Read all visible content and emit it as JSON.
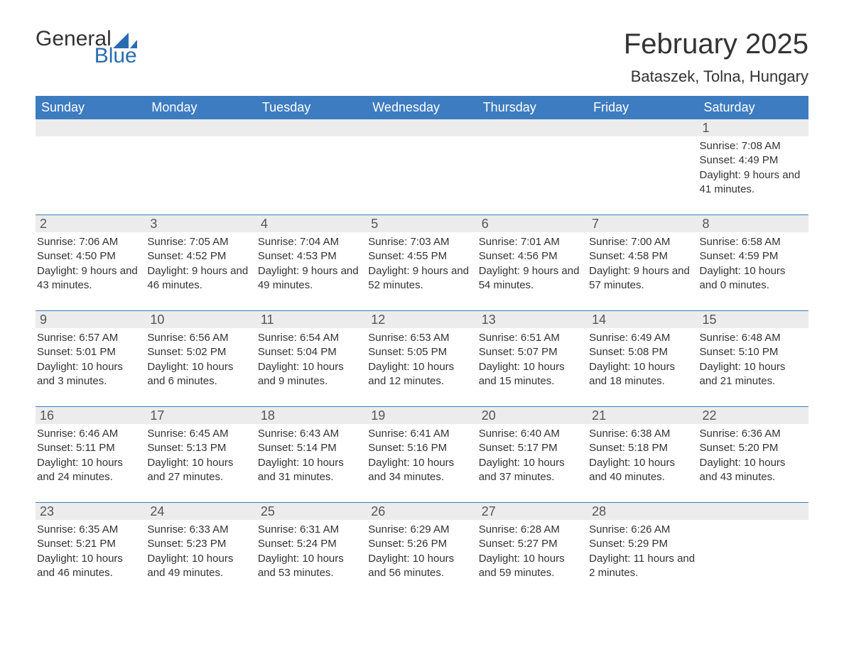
{
  "logo": {
    "word1": "General",
    "word2": "Blue"
  },
  "title": "February 2025",
  "location": "Bataszek, Tolna, Hungary",
  "colors": {
    "header_bg": "#3d7cc0",
    "header_text": "#ffffff",
    "daynum_bg": "#ececec",
    "daynum_text": "#555555",
    "body_text": "#333333",
    "accent": "#2a6cb0",
    "rule": "#3d7cc0",
    "page_bg": "#ffffff"
  },
  "typography": {
    "title_fontsize": 40,
    "location_fontsize": 22,
    "dayheader_fontsize": 18,
    "daynum_fontsize": 18,
    "cell_fontsize": 15,
    "font_family": "Arial"
  },
  "day_headers": [
    "Sunday",
    "Monday",
    "Tuesday",
    "Wednesday",
    "Thursday",
    "Friday",
    "Saturday"
  ],
  "weeks": [
    [
      {
        "n": "",
        "lines": []
      },
      {
        "n": "",
        "lines": []
      },
      {
        "n": "",
        "lines": []
      },
      {
        "n": "",
        "lines": []
      },
      {
        "n": "",
        "lines": []
      },
      {
        "n": "",
        "lines": []
      },
      {
        "n": "1",
        "lines": [
          "Sunrise: 7:08 AM",
          "Sunset: 4:49 PM",
          "Daylight: 9 hours and 41 minutes."
        ]
      }
    ],
    [
      {
        "n": "2",
        "lines": [
          "Sunrise: 7:06 AM",
          "Sunset: 4:50 PM",
          "Daylight: 9 hours and 43 minutes."
        ]
      },
      {
        "n": "3",
        "lines": [
          "Sunrise: 7:05 AM",
          "Sunset: 4:52 PM",
          "Daylight: 9 hours and 46 minutes."
        ]
      },
      {
        "n": "4",
        "lines": [
          "Sunrise: 7:04 AM",
          "Sunset: 4:53 PM",
          "Daylight: 9 hours and 49 minutes."
        ]
      },
      {
        "n": "5",
        "lines": [
          "Sunrise: 7:03 AM",
          "Sunset: 4:55 PM",
          "Daylight: 9 hours and 52 minutes."
        ]
      },
      {
        "n": "6",
        "lines": [
          "Sunrise: 7:01 AM",
          "Sunset: 4:56 PM",
          "Daylight: 9 hours and 54 minutes."
        ]
      },
      {
        "n": "7",
        "lines": [
          "Sunrise: 7:00 AM",
          "Sunset: 4:58 PM",
          "Daylight: 9 hours and 57 minutes."
        ]
      },
      {
        "n": "8",
        "lines": [
          "Sunrise: 6:58 AM",
          "Sunset: 4:59 PM",
          "Daylight: 10 hours and 0 minutes."
        ]
      }
    ],
    [
      {
        "n": "9",
        "lines": [
          "Sunrise: 6:57 AM",
          "Sunset: 5:01 PM",
          "Daylight: 10 hours and 3 minutes."
        ]
      },
      {
        "n": "10",
        "lines": [
          "Sunrise: 6:56 AM",
          "Sunset: 5:02 PM",
          "Daylight: 10 hours and 6 minutes."
        ]
      },
      {
        "n": "11",
        "lines": [
          "Sunrise: 6:54 AM",
          "Sunset: 5:04 PM",
          "Daylight: 10 hours and 9 minutes."
        ]
      },
      {
        "n": "12",
        "lines": [
          "Sunrise: 6:53 AM",
          "Sunset: 5:05 PM",
          "Daylight: 10 hours and 12 minutes."
        ]
      },
      {
        "n": "13",
        "lines": [
          "Sunrise: 6:51 AM",
          "Sunset: 5:07 PM",
          "Daylight: 10 hours and 15 minutes."
        ]
      },
      {
        "n": "14",
        "lines": [
          "Sunrise: 6:49 AM",
          "Sunset: 5:08 PM",
          "Daylight: 10 hours and 18 minutes."
        ]
      },
      {
        "n": "15",
        "lines": [
          "Sunrise: 6:48 AM",
          "Sunset: 5:10 PM",
          "Daylight: 10 hours and 21 minutes."
        ]
      }
    ],
    [
      {
        "n": "16",
        "lines": [
          "Sunrise: 6:46 AM",
          "Sunset: 5:11 PM",
          "Daylight: 10 hours and 24 minutes."
        ]
      },
      {
        "n": "17",
        "lines": [
          "Sunrise: 6:45 AM",
          "Sunset: 5:13 PM",
          "Daylight: 10 hours and 27 minutes."
        ]
      },
      {
        "n": "18",
        "lines": [
          "Sunrise: 6:43 AM",
          "Sunset: 5:14 PM",
          "Daylight: 10 hours and 31 minutes."
        ]
      },
      {
        "n": "19",
        "lines": [
          "Sunrise: 6:41 AM",
          "Sunset: 5:16 PM",
          "Daylight: 10 hours and 34 minutes."
        ]
      },
      {
        "n": "20",
        "lines": [
          "Sunrise: 6:40 AM",
          "Sunset: 5:17 PM",
          "Daylight: 10 hours and 37 minutes."
        ]
      },
      {
        "n": "21",
        "lines": [
          "Sunrise: 6:38 AM",
          "Sunset: 5:18 PM",
          "Daylight: 10 hours and 40 minutes."
        ]
      },
      {
        "n": "22",
        "lines": [
          "Sunrise: 6:36 AM",
          "Sunset: 5:20 PM",
          "Daylight: 10 hours and 43 minutes."
        ]
      }
    ],
    [
      {
        "n": "23",
        "lines": [
          "Sunrise: 6:35 AM",
          "Sunset: 5:21 PM",
          "Daylight: 10 hours and 46 minutes."
        ]
      },
      {
        "n": "24",
        "lines": [
          "Sunrise: 6:33 AM",
          "Sunset: 5:23 PM",
          "Daylight: 10 hours and 49 minutes."
        ]
      },
      {
        "n": "25",
        "lines": [
          "Sunrise: 6:31 AM",
          "Sunset: 5:24 PM",
          "Daylight: 10 hours and 53 minutes."
        ]
      },
      {
        "n": "26",
        "lines": [
          "Sunrise: 6:29 AM",
          "Sunset: 5:26 PM",
          "Daylight: 10 hours and 56 minutes."
        ]
      },
      {
        "n": "27",
        "lines": [
          "Sunrise: 6:28 AM",
          "Sunset: 5:27 PM",
          "Daylight: 10 hours and 59 minutes."
        ]
      },
      {
        "n": "28",
        "lines": [
          "Sunrise: 6:26 AM",
          "Sunset: 5:29 PM",
          "Daylight: 11 hours and 2 minutes."
        ]
      },
      {
        "n": "",
        "lines": []
      }
    ]
  ]
}
